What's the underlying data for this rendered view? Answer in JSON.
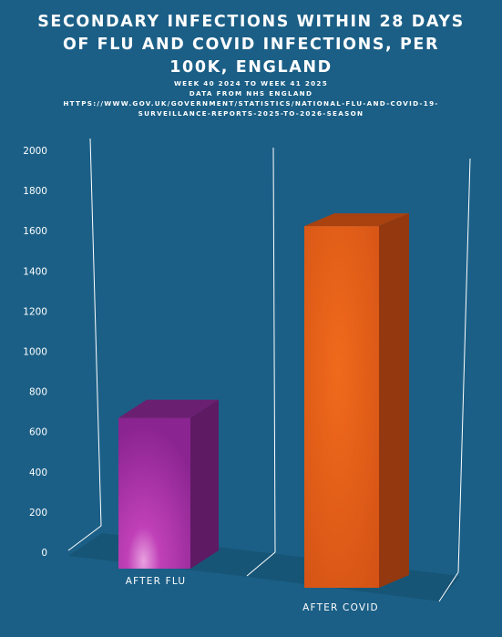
{
  "title": "SECONDARY INFECTIONS WITHIN 28 DAYS OF FLU AND COVID INFECTIONS, PER 100K, ENGLAND",
  "subtitle_lines": [
    "WEEK 40 2024 TO WEEK 41 2025",
    "DATA FROM NHS ENGLAND",
    "HTTPS://WWW.GOV.UK/GOVERNMENT/STATISTICS/NATIONAL-FLU-AND-COVID-19-",
    "SURVEILLANCE-REPORTS-2025-TO-2026-SEASON"
  ],
  "colors": {
    "background": "#1b5f86",
    "flu_bar": "#b52fb0",
    "covid_bar": "#e8601a"
  },
  "chart_data": {
    "type": "bar",
    "title": "SECONDARY INFECTIONS WITHIN 28 DAYS OF FLU AND COVID INFECTIONS, PER 100K, ENGLAND",
    "categories": [
      "AFTER FLU",
      "AFTER COVID"
    ],
    "values": [
      750,
      1800
    ],
    "ylim": [
      0,
      2000
    ],
    "yticks": [
      0,
      200,
      400,
      600,
      800,
      1000,
      1200,
      1400,
      1600,
      1800,
      2000
    ],
    "xlabel": "",
    "ylabel": "",
    "grid": false,
    "legend": "none",
    "style": "3d"
  }
}
